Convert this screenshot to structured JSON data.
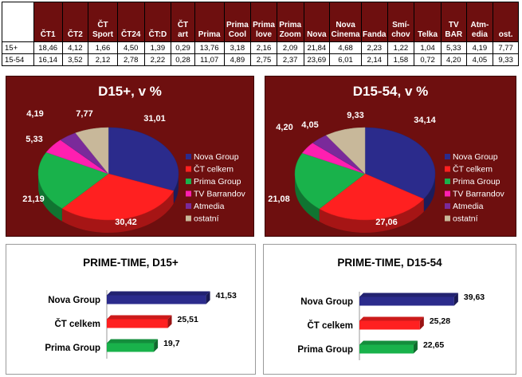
{
  "table": {
    "columns": [
      "ČT1",
      "ČT2",
      "ČT Sport",
      "ČT24",
      "ČT:D",
      "ČT art",
      "Prima",
      "Prima Cool",
      "Prima love",
      "Prima Zoom",
      "Nova",
      "Nova Cinema",
      "Fanda",
      "Smí-chov",
      "Telka",
      "TV BAR",
      "Atm-edia",
      "ost."
    ],
    "rows": [
      {
        "label": "15+",
        "values": [
          "18,46",
          "4,12",
          "1,66",
          "4,50",
          "1,39",
          "0,29",
          "13,76",
          "3,18",
          "2,16",
          "2,09",
          "21,84",
          "4,68",
          "2,23",
          "1,22",
          "1,04",
          "5,33",
          "4,19",
          "7,77"
        ]
      },
      {
        "label": "15-54",
        "values": [
          "16,14",
          "3,52",
          "2,12",
          "2,78",
          "2,22",
          "0,28",
          "11,07",
          "4,89",
          "2,75",
          "2,37",
          "23,69",
          "6,01",
          "2,14",
          "1,58",
          "0,72",
          "4,20",
          "4,05",
          "9,33"
        ]
      }
    ]
  },
  "colors": {
    "panel_bg": "#6e0f0f",
    "nova": "#2b2b8c",
    "ct": "#ff2020",
    "prima": "#19b24b",
    "barrandov": "#ff1fb0",
    "atmedia": "#7a2a9a",
    "ostatni": "#c8b89a"
  },
  "chart_data": [
    {
      "type": "pie",
      "title": "D15+, v %",
      "labels": [
        "Nova Group",
        "ČT celkem",
        "Prima Group",
        "TV Barrandov",
        "Atmedia",
        "ostatní"
      ],
      "values": [
        31.01,
        30.42,
        21.19,
        5.33,
        4.19,
        7.77
      ],
      "value_labels": [
        "31,01",
        "30,42",
        "21,19",
        "5,33",
        "4,19",
        "7,77"
      ],
      "legend": "right"
    },
    {
      "type": "pie",
      "title": "D15-54, v %",
      "labels": [
        "Nova Group",
        "ČT celkem",
        "Prima Group",
        "TV Barrandov",
        "Atmedia",
        "ostatní"
      ],
      "values": [
        34.14,
        27.06,
        21.08,
        4.2,
        4.05,
        9.33
      ],
      "value_labels": [
        "34,14",
        "27,06",
        "21,08",
        "4,20",
        "4,05",
        "9,33"
      ],
      "legend": "right"
    },
    {
      "type": "bar",
      "orientation": "horizontal",
      "title": "PRIME-TIME, D15+",
      "categories": [
        "Nova Group",
        "ČT celkem",
        "Prima Group"
      ],
      "values": [
        41.53,
        25.51,
        19.7
      ],
      "value_labels": [
        "41,53",
        "25,51",
        "19,7"
      ],
      "xlim": [
        0,
        45
      ]
    },
    {
      "type": "bar",
      "orientation": "horizontal",
      "title": "PRIME-TIME, D15-54",
      "categories": [
        "Nova Group",
        "ČT celkem",
        "Prima Group"
      ],
      "values": [
        39.63,
        25.28,
        22.65
      ],
      "value_labels": [
        "39,63",
        "25,28",
        "22,65"
      ],
      "xlim": [
        0,
        45
      ]
    }
  ]
}
